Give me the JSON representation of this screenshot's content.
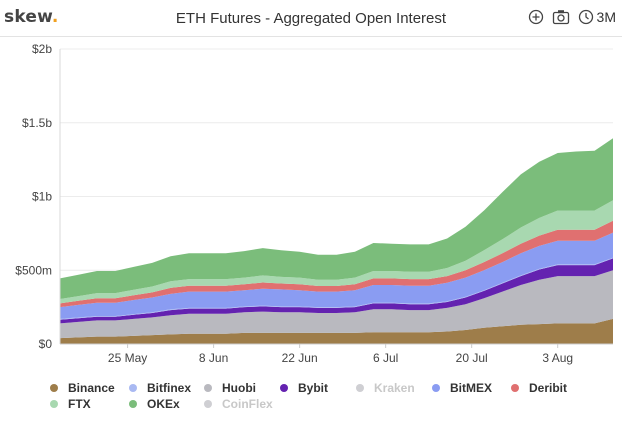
{
  "brand": {
    "name": "skew",
    "dot": "."
  },
  "title": "ETH Futures - Aggregated Open Interest",
  "toolbar": {
    "add_icon": "plus-circle-icon",
    "camera_icon": "camera-icon",
    "clock_icon": "clock-icon",
    "range": "3M"
  },
  "colors": {
    "Binance": "#9e7d4a",
    "Bitfinex": "#a9b9f2",
    "Huobi": "#b9b9bf",
    "Bybit": "#6422b0",
    "Kraken": "#cfcfd3",
    "BitMEX": "#8a9cf2",
    "Deribit": "#e07070",
    "FTX": "#a8d8b0",
    "OKEx": "#7bbd7b",
    "CoinFlex": "#cfcfd3"
  },
  "legend": [
    {
      "name": "Binance",
      "active": true
    },
    {
      "name": "Bitfinex",
      "active": true
    },
    {
      "name": "Huobi",
      "active": true
    },
    {
      "name": "Bybit",
      "active": true
    },
    {
      "name": "Kraken",
      "active": false
    },
    {
      "name": "BitMEX",
      "active": true
    },
    {
      "name": "Deribit",
      "active": true
    },
    {
      "name": "FTX",
      "active": true
    },
    {
      "name": "OKEx",
      "active": true
    },
    {
      "name": "CoinFlex",
      "active": false
    }
  ],
  "chart_data": {
    "type": "area",
    "stacked": true,
    "title": "ETH Futures - Aggregated Open Interest",
    "xlabel": "",
    "ylabel": "",
    "x": [
      "2020-05-14",
      "2020-05-17",
      "2020-05-20",
      "2020-05-23",
      "2020-05-26",
      "2020-05-29",
      "2020-06-01",
      "2020-06-04",
      "2020-06-07",
      "2020-06-10",
      "2020-06-13",
      "2020-06-16",
      "2020-06-19",
      "2020-06-22",
      "2020-06-25",
      "2020-06-28",
      "2020-07-01",
      "2020-07-04",
      "2020-07-07",
      "2020-07-10",
      "2020-07-13",
      "2020-07-16",
      "2020-07-19",
      "2020-07-22",
      "2020-07-25",
      "2020-07-28",
      "2020-07-31",
      "2020-08-03",
      "2020-08-06",
      "2020-08-09",
      "2020-08-12"
    ],
    "xticks": [
      "25 May",
      "8 Jun",
      "22 Jun",
      "6 Jul",
      "20 Jul",
      "3 Aug"
    ],
    "xtick_dates": [
      "2020-05-25",
      "2020-06-08",
      "2020-06-22",
      "2020-07-06",
      "2020-07-20",
      "2020-08-03"
    ],
    "ylim": [
      0,
      2000000000
    ],
    "yticks": [
      0,
      500000000,
      1000000000,
      1500000000,
      2000000000
    ],
    "ytick_labels": [
      "$0",
      "$500m",
      "$1b",
      "$1.5b",
      "$2b"
    ],
    "grid": true,
    "legend_position": "bottom",
    "series": [
      {
        "name": "Binance",
        "values": [
          40,
          45,
          50,
          50,
          55,
          60,
          65,
          70,
          70,
          70,
          75,
          75,
          75,
          75,
          75,
          75,
          75,
          80,
          80,
          80,
          80,
          85,
          95,
          110,
          120,
          130,
          135,
          140,
          140,
          140,
          170
        ]
      },
      {
        "name": "Huobi",
        "values": [
          100,
          105,
          110,
          110,
          115,
          120,
          130,
          135,
          135,
          135,
          140,
          145,
          140,
          140,
          135,
          135,
          140,
          155,
          155,
          150,
          150,
          160,
          175,
          200,
          235,
          270,
          300,
          320,
          320,
          320,
          330
        ]
      },
      {
        "name": "Bybit",
        "values": [
          25,
          25,
          25,
          25,
          28,
          30,
          35,
          35,
          35,
          35,
          35,
          35,
          35,
          35,
          35,
          35,
          35,
          40,
          40,
          40,
          40,
          40,
          45,
          50,
          55,
          60,
          70,
          75,
          75,
          75,
          80
        ]
      },
      {
        "name": "Bitfinex",
        "values": [
          5,
          5,
          5,
          5,
          5,
          5,
          5,
          5,
          5,
          5,
          5,
          5,
          5,
          5,
          5,
          5,
          5,
          5,
          5,
          5,
          5,
          5,
          5,
          5,
          5,
          5,
          5,
          5,
          5,
          5,
          5
        ]
      },
      {
        "name": "BitMEX",
        "values": [
          80,
          85,
          90,
          90,
          95,
          100,
          105,
          110,
          110,
          110,
          110,
          115,
          115,
          110,
          105,
          105,
          110,
          120,
          120,
          120,
          120,
          125,
          130,
          135,
          140,
          150,
          155,
          160,
          160,
          160,
          170
        ]
      },
      {
        "name": "Deribit",
        "values": [
          25,
          28,
          30,
          30,
          32,
          35,
          40,
          40,
          40,
          40,
          40,
          42,
          40,
          40,
          38,
          38,
          40,
          45,
          45,
          45,
          45,
          45,
          50,
          55,
          60,
          65,
          70,
          75,
          75,
          75,
          80
        ]
      },
      {
        "name": "FTX",
        "values": [
          30,
          32,
          35,
          35,
          38,
          40,
          45,
          45,
          45,
          45,
          45,
          48,
          45,
          45,
          42,
          42,
          45,
          50,
          50,
          50,
          50,
          55,
          65,
          80,
          95,
          110,
          120,
          130,
          130,
          130,
          140
        ]
      },
      {
        "name": "OKEx",
        "values": [
          140,
          145,
          150,
          150,
          155,
          160,
          170,
          175,
          175,
          175,
          180,
          185,
          180,
          175,
          170,
          170,
          175,
          190,
          185,
          185,
          185,
          200,
          230,
          270,
          320,
          360,
          380,
          390,
          400,
          405,
          420
        ]
      }
    ],
    "units": "$ millions"
  }
}
